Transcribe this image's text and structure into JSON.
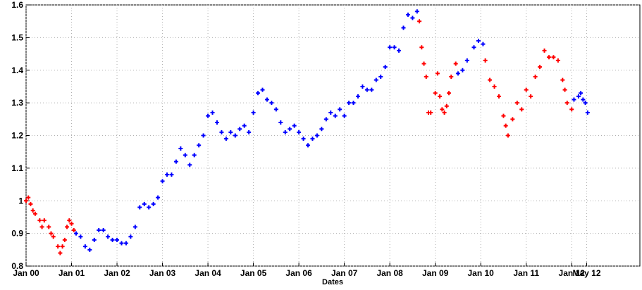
{
  "chart_data": {
    "type": "scatter",
    "x_label": "Dates",
    "xlim": [
      2000,
      2013.5
    ],
    "ylim": [
      0.8,
      1.6
    ],
    "xticks": [
      {
        "value": 2000,
        "label": "Jan 00"
      },
      {
        "value": 2001,
        "label": "Jan 01"
      },
      {
        "value": 2002,
        "label": "Jan 02"
      },
      {
        "value": 2003,
        "label": "Jan 03"
      },
      {
        "value": 2004,
        "label": "Jan 04"
      },
      {
        "value": 2005,
        "label": "Jan 05"
      },
      {
        "value": 2006,
        "label": "Jan 06"
      },
      {
        "value": 2007,
        "label": "Jan 07"
      },
      {
        "value": 2008,
        "label": "Jan 08"
      },
      {
        "value": 2009,
        "label": "Jan 09"
      },
      {
        "value": 2010,
        "label": "Jan 10"
      },
      {
        "value": 2011,
        "label": "Jan 11"
      },
      {
        "value": 2012,
        "label": "Jan 12"
      },
      {
        "value": 2012.33,
        "label": "May 12"
      }
    ],
    "yticks": [
      0.8,
      0.9,
      1,
      1.1,
      1.2,
      1.3,
      1.4,
      1.5,
      1.6
    ],
    "grid": true,
    "series": [
      {
        "color": "#ff0000",
        "x": [
          2000.0,
          2000.05,
          2000.1,
          2000.15,
          2000.2,
          2000.3,
          2000.35,
          2000.4,
          2000.5,
          2000.55,
          2000.6,
          2000.7,
          2000.75,
          2000.8,
          2000.85,
          2000.9,
          2000.95,
          2001.0,
          2001.05
        ],
        "values": [
          1.0,
          1.01,
          0.99,
          0.97,
          0.96,
          0.94,
          0.92,
          0.94,
          0.92,
          0.9,
          0.89,
          0.86,
          0.84,
          0.86,
          0.88,
          0.92,
          0.94,
          0.93,
          0.91
        ]
      },
      {
        "color": "#0000ff",
        "x": [
          2001.1,
          2001.2,
          2001.3,
          2001.4,
          2001.5,
          2001.6,
          2001.7,
          2001.8,
          2001.9,
          2002.0,
          2002.1,
          2002.2,
          2002.3,
          2002.4,
          2002.5,
          2002.6,
          2002.7,
          2002.8,
          2002.9,
          2003.0,
          2003.1,
          2003.2,
          2003.3,
          2003.4,
          2003.5,
          2003.6,
          2003.7,
          2003.8,
          2003.9,
          2004.0,
          2004.1,
          2004.2,
          2004.3,
          2004.4,
          2004.5,
          2004.6,
          2004.7,
          2004.8,
          2004.9,
          2005.0,
          2005.1,
          2005.2,
          2005.3,
          2005.4,
          2005.5,
          2005.6,
          2005.7,
          2005.8,
          2005.9,
          2006.0,
          2006.1,
          2006.2,
          2006.3,
          2006.4,
          2006.5,
          2006.6,
          2006.7,
          2006.8,
          2006.9,
          2007.0,
          2007.1,
          2007.2,
          2007.3,
          2007.4,
          2007.5,
          2007.6,
          2007.7,
          2007.8,
          2007.9,
          2008.0,
          2008.1,
          2008.2,
          2008.3,
          2008.4,
          2008.5,
          2008.6
        ],
        "values": [
          0.9,
          0.89,
          0.86,
          0.85,
          0.88,
          0.91,
          0.91,
          0.89,
          0.88,
          0.88,
          0.87,
          0.87,
          0.89,
          0.92,
          0.98,
          0.99,
          0.98,
          0.99,
          1.01,
          1.06,
          1.08,
          1.08,
          1.12,
          1.16,
          1.14,
          1.11,
          1.14,
          1.17,
          1.2,
          1.26,
          1.27,
          1.24,
          1.21,
          1.19,
          1.21,
          1.2,
          1.22,
          1.23,
          1.21,
          1.27,
          1.33,
          1.34,
          1.31,
          1.3,
          1.28,
          1.24,
          1.21,
          1.22,
          1.23,
          1.21,
          1.19,
          1.17,
          1.19,
          1.2,
          1.22,
          1.25,
          1.27,
          1.26,
          1.28,
          1.26,
          1.3,
          1.3,
          1.32,
          1.35,
          1.34,
          1.34,
          1.37,
          1.38,
          1.41,
          1.47,
          1.47,
          1.46,
          1.53,
          1.57,
          1.56,
          1.58
        ]
      },
      {
        "color": "#ff0000",
        "x": [
          2008.65,
          2008.7,
          2008.75,
          2008.8,
          2008.85,
          2008.9,
          2009.0,
          2009.05,
          2009.1,
          2009.15,
          2009.2,
          2009.25,
          2009.3,
          2009.35,
          2009.45
        ],
        "values": [
          1.55,
          1.47,
          1.42,
          1.38,
          1.27,
          1.27,
          1.33,
          1.39,
          1.32,
          1.28,
          1.27,
          1.29,
          1.33,
          1.38,
          1.42
        ]
      },
      {
        "color": "#0000ff",
        "x": [
          2009.5,
          2009.6,
          2009.7,
          2009.85,
          2009.95,
          2010.05
        ],
        "values": [
          1.39,
          1.4,
          1.43,
          1.47,
          1.49,
          1.48
        ]
      },
      {
        "color": "#ff0000",
        "x": [
          2010.1,
          2010.2,
          2010.3,
          2010.4,
          2010.5,
          2010.55,
          2010.6,
          2010.7,
          2010.8,
          2010.9,
          2011.0,
          2011.1,
          2011.2,
          2011.3,
          2011.4,
          2011.5,
          2011.6,
          2011.7,
          2011.8,
          2011.85,
          2011.9,
          2012.0
        ],
        "values": [
          1.43,
          1.37,
          1.35,
          1.32,
          1.26,
          1.23,
          1.2,
          1.25,
          1.3,
          1.28,
          1.34,
          1.32,
          1.38,
          1.41,
          1.46,
          1.44,
          1.44,
          1.43,
          1.37,
          1.34,
          1.3,
          1.28
        ]
      },
      {
        "color": "#0000ff",
        "x": [
          2012.05,
          2012.15,
          2012.2,
          2012.25,
          2012.3,
          2012.35
        ],
        "values": [
          1.31,
          1.32,
          1.33,
          1.31,
          1.3,
          1.27
        ]
      }
    ]
  }
}
